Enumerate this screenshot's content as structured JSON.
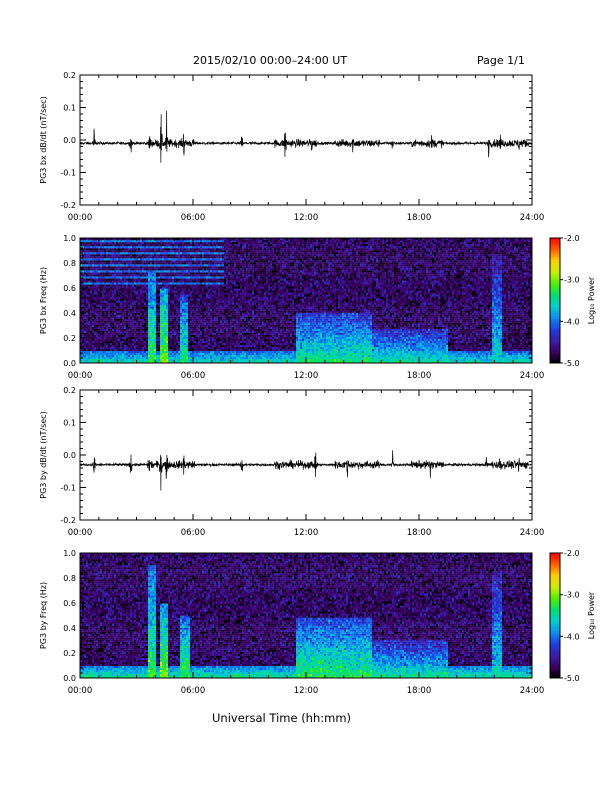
{
  "header": {
    "title": "2015/02/10  00:00–24:00 UT",
    "page": "Page 1/1"
  },
  "footer": {
    "xlabel": "Universal Time (hh:mm)"
  },
  "colors": {
    "trace": "#000000",
    "colormap": [
      "#000000",
      "#3b0060",
      "#3a1ca8",
      "#1f3fe0",
      "#0a8cf0",
      "#00d0d0",
      "#00e070",
      "#50f000",
      "#c8f000",
      "#ffd000",
      "#ff6000",
      "#ff0000"
    ]
  },
  "chart_data": [
    {
      "id": "panel-1",
      "type": "line",
      "ylabel": "PG3 bx dB/dt (nT/sec)",
      "xlim": [
        0,
        24
      ],
      "ylim": [
        -0.2,
        0.2
      ],
      "xticks": [
        "00:00",
        "06:00",
        "12:00",
        "18:00",
        "24:00"
      ],
      "yticks": [
        "-0.2",
        "-0.1",
        "0.0",
        "0.1",
        "0.2"
      ],
      "baseline": -0.01,
      "bursts": [
        {
          "t": 0.75,
          "amp": 0.06
        },
        {
          "t": 2.7,
          "amp": 0.06
        },
        {
          "t": 3.7,
          "amp": 0.05
        },
        {
          "t": 4.3,
          "amp": 0.11
        },
        {
          "t": 4.6,
          "amp": 0.1
        },
        {
          "t": 5.5,
          "amp": 0.08
        },
        {
          "t": 8.6,
          "amp": 0.04
        },
        {
          "t": 10.9,
          "amp": 0.1
        },
        {
          "t": 12.3,
          "amp": 0.04
        },
        {
          "t": 14.5,
          "amp": 0.05
        },
        {
          "t": 16.6,
          "amp": 0.05
        },
        {
          "t": 18.7,
          "amp": 0.06
        },
        {
          "t": 21.7,
          "amp": 0.05
        },
        {
          "t": 22.3,
          "amp": 0.06
        },
        {
          "t": 23.3,
          "amp": 0.04
        }
      ],
      "active_windows": [
        [
          3.6,
          6.1
        ],
        [
          10.3,
          12.6
        ],
        [
          13.5,
          15.9
        ],
        [
          17.6,
          19.3
        ],
        [
          21.8,
          23.8
        ]
      ]
    },
    {
      "id": "panel-2",
      "type": "heatmap",
      "ylabel": "PG3 bx Freq (Hz)",
      "xlim": [
        0,
        24
      ],
      "ylim": [
        0,
        1.0
      ],
      "xticks": [
        "00:00",
        "06:00",
        "12:00",
        "18:00",
        "24:00"
      ],
      "yticks": [
        "0.0",
        "0.2",
        "0.4",
        "0.6",
        "0.8",
        "1.0"
      ],
      "zlim": [
        -5.0,
        -2.0
      ],
      "colorbar_label": "Log₁₀ Power",
      "colorbar_ticks": [
        "-5.0",
        "-4.0",
        "-3.0",
        "-2.0"
      ],
      "background": -4.7,
      "low_freq_band": {
        "fmax": 0.1,
        "level": -4.1
      },
      "interference_lines": {
        "fmin": 0.6,
        "fmax": 0.98,
        "tmax": 7.6,
        "level": -4.0
      },
      "features": [
        {
          "t0": 3.6,
          "t1": 4.0,
          "fmax": 0.72,
          "level": -3.2
        },
        {
          "t0": 4.2,
          "t1": 4.7,
          "fmax": 0.6,
          "level": -3.0
        },
        {
          "t0": 5.3,
          "t1": 5.7,
          "fmax": 0.55,
          "level": -3.3
        },
        {
          "t0": 11.5,
          "t1": 15.5,
          "fmax": 0.4,
          "level": -3.4
        },
        {
          "t0": 15.5,
          "t1": 19.5,
          "fmax": 0.28,
          "level": -3.5
        },
        {
          "t0": 21.9,
          "t1": 22.4,
          "fmax": 0.85,
          "level": -3.6
        }
      ]
    },
    {
      "id": "panel-3",
      "type": "line",
      "ylabel": "PG3 by dB/dt (nT/sec)",
      "xlim": [
        0,
        24
      ],
      "ylim": [
        -0.2,
        0.2
      ],
      "xticks": [
        "00:00",
        "06:00",
        "12:00",
        "18:00",
        "24:00"
      ],
      "yticks": [
        "-0.2",
        "-0.1",
        "0.0",
        "0.1",
        "0.2"
      ],
      "baseline": -0.03,
      "bursts": [
        {
          "t": 0.75,
          "amp": 0.06
        },
        {
          "t": 2.7,
          "amp": 0.06
        },
        {
          "t": 3.7,
          "amp": 0.06
        },
        {
          "t": 4.3,
          "amp": 0.11
        },
        {
          "t": 4.6,
          "amp": 0.09
        },
        {
          "t": 5.5,
          "amp": 0.07
        },
        {
          "t": 8.6,
          "amp": 0.05
        },
        {
          "t": 12.5,
          "amp": 0.06
        },
        {
          "t": 14.2,
          "amp": 0.05
        },
        {
          "t": 16.6,
          "amp": 0.05
        },
        {
          "t": 18.6,
          "amp": 0.06
        },
        {
          "t": 21.6,
          "amp": 0.05
        },
        {
          "t": 22.3,
          "amp": 0.06
        },
        {
          "t": 23.3,
          "amp": 0.05
        }
      ],
      "active_windows": [
        [
          3.6,
          6.1
        ],
        [
          10.3,
          12.6
        ],
        [
          13.5,
          15.9
        ],
        [
          17.6,
          19.3
        ],
        [
          21.8,
          23.8
        ]
      ]
    },
    {
      "id": "panel-4",
      "type": "heatmap",
      "ylabel": "PG3 by Freq (Hz)",
      "xlim": [
        0,
        24
      ],
      "ylim": [
        0,
        1.0
      ],
      "xticks": [
        "00:00",
        "06:00",
        "12:00",
        "18:00",
        "24:00"
      ],
      "yticks": [
        "0.0",
        "0.2",
        "0.4",
        "0.6",
        "0.8",
        "1.0"
      ],
      "zlim": [
        -5.0,
        -2.0
      ],
      "colorbar_label": "Log₁₀ Power",
      "colorbar_ticks": [
        "-5.0",
        "-4.0",
        "-3.0",
        "-2.0"
      ],
      "background": -4.7,
      "low_freq_band": {
        "fmax": 0.1,
        "level": -4.0
      },
      "features": [
        {
          "t0": 3.6,
          "t1": 4.0,
          "fmax": 0.9,
          "level": -3.2
        },
        {
          "t0": 4.2,
          "t1": 4.7,
          "fmax": 0.6,
          "level": -3.0
        },
        {
          "t0": 5.3,
          "t1": 5.8,
          "fmax": 0.5,
          "level": -3.2
        },
        {
          "t0": 11.5,
          "t1": 15.5,
          "fmax": 0.48,
          "level": -3.3
        },
        {
          "t0": 15.5,
          "t1": 19.5,
          "fmax": 0.3,
          "level": -3.5
        },
        {
          "t0": 21.9,
          "t1": 22.4,
          "fmax": 0.85,
          "level": -3.6
        }
      ]
    }
  ]
}
